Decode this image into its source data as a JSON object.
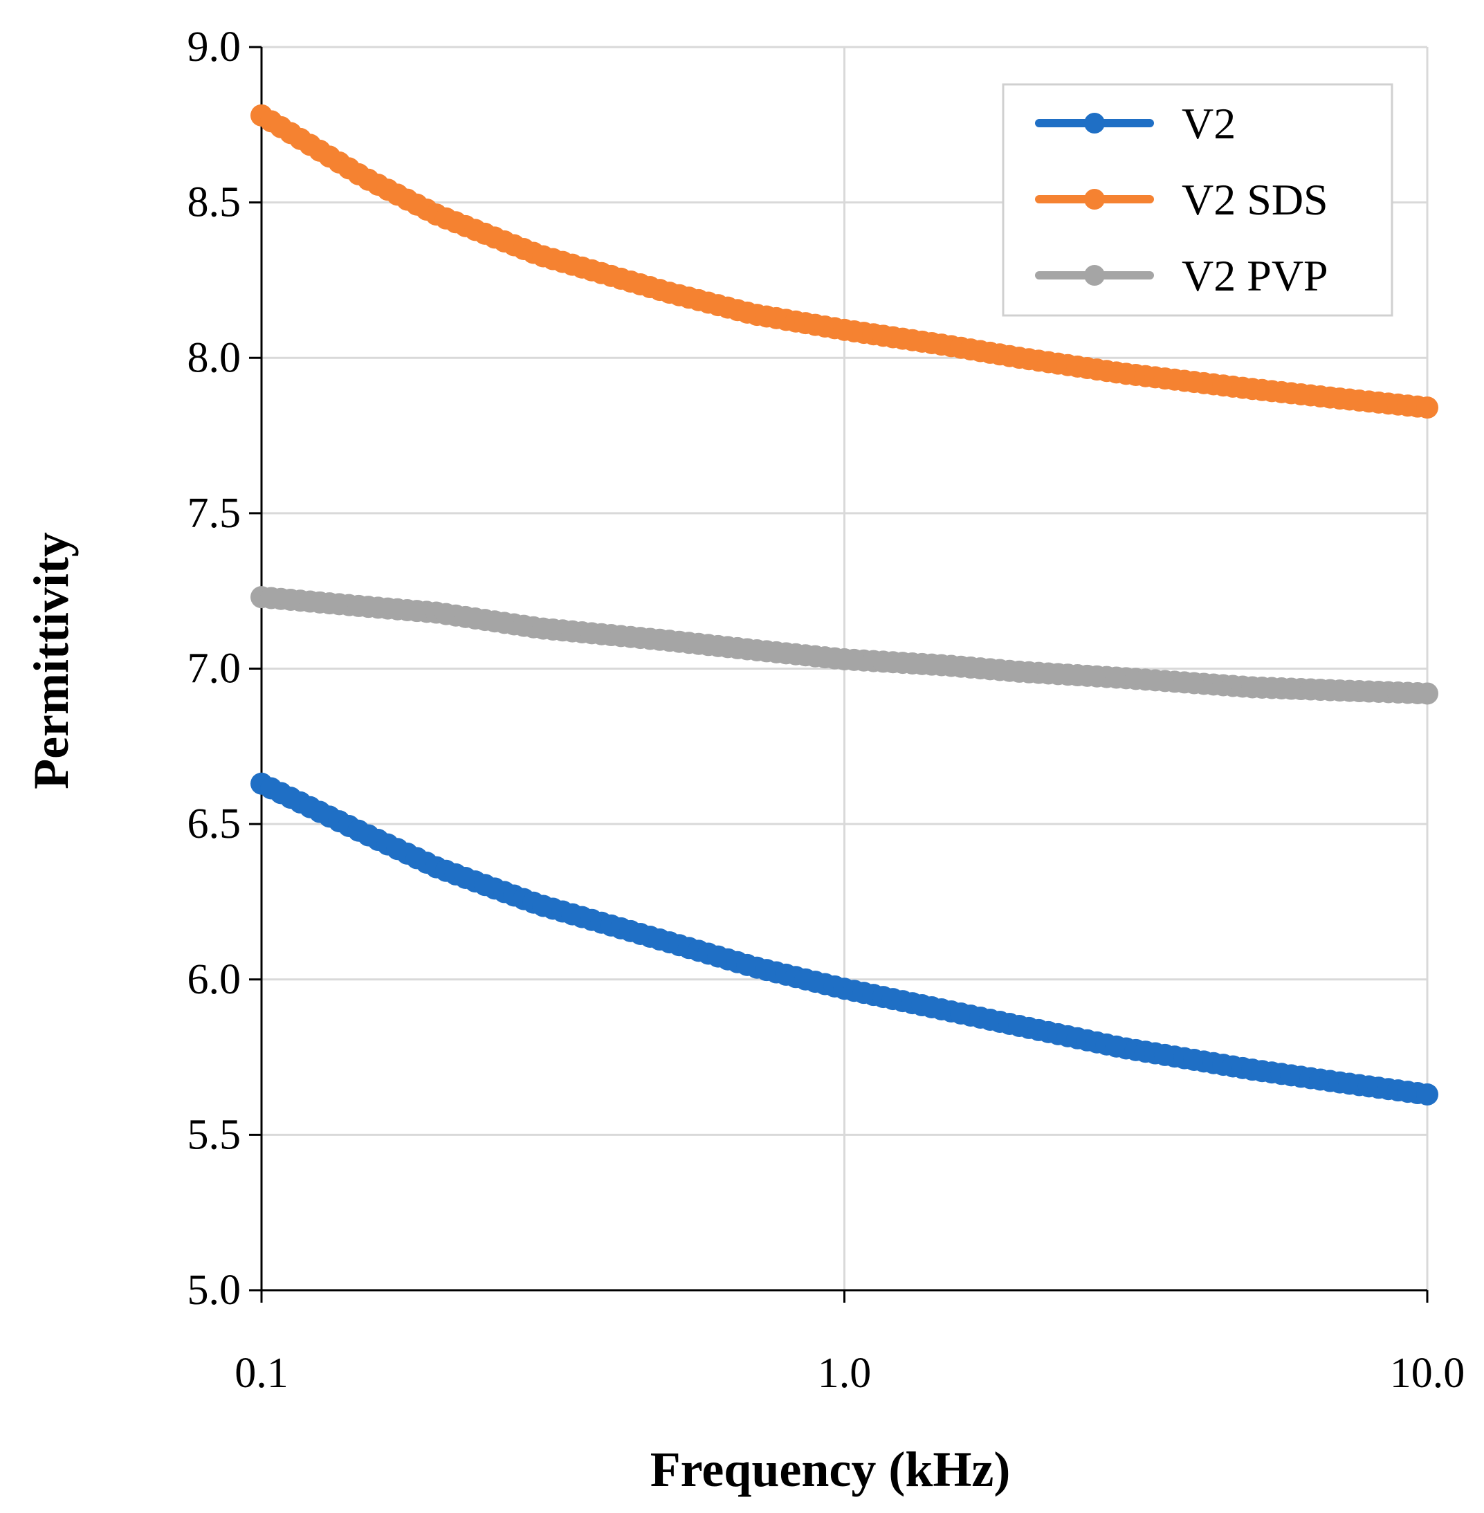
{
  "chart_data": {
    "type": "line",
    "xlabel": "Frequency (kHz)",
    "ylabel": "Permittivity",
    "xscale": "log",
    "xlim": [
      0.1,
      10.0
    ],
    "ylim": [
      5.0,
      9.0
    ],
    "xticks": [
      "0.1",
      "1.0",
      "10.0"
    ],
    "yticks": [
      "5.0",
      "5.5",
      "6.0",
      "6.5",
      "7.0",
      "7.5",
      "8.0",
      "8.5",
      "9.0"
    ],
    "grid": true,
    "legend_position": "top-right",
    "x": [
      0.1,
      0.15,
      0.2,
      0.3,
      0.5,
      0.7,
      1.0,
      1.5,
      2.0,
      3.0,
      5.0,
      7.0,
      10.0
    ],
    "series": [
      {
        "name": "V2",
        "color": "#1F6FC5",
        "values": [
          6.63,
          6.47,
          6.36,
          6.24,
          6.12,
          6.04,
          5.97,
          5.9,
          5.85,
          5.78,
          5.71,
          5.67,
          5.63
        ]
      },
      {
        "name": "V2 SDS",
        "color": "#F58231",
        "values": [
          8.78,
          8.58,
          8.46,
          8.33,
          8.21,
          8.14,
          8.09,
          8.04,
          8.0,
          7.95,
          7.9,
          7.87,
          7.84
        ]
      },
      {
        "name": "V2 PVP",
        "color": "#A5A5A5",
        "values": [
          7.23,
          7.2,
          7.18,
          7.13,
          7.09,
          7.06,
          7.03,
          7.01,
          6.99,
          6.97,
          6.94,
          6.93,
          6.92
        ]
      }
    ]
  }
}
